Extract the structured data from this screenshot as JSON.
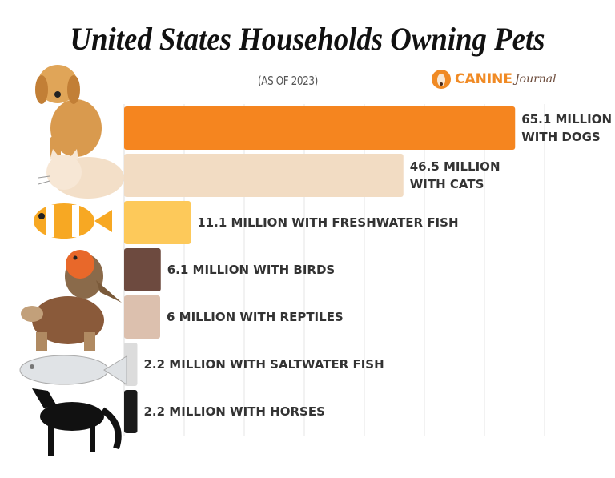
{
  "chart_data": {
    "type": "bar",
    "orientation": "horizontal",
    "title": "United States Households Owning Pets",
    "subtitle": "(AS OF 2023)",
    "categories": [
      "Dogs",
      "Cats",
      "Freshwater Fish",
      "Birds",
      "Reptiles",
      "Saltwater Fish",
      "Horses"
    ],
    "values": [
      65.1,
      46.5,
      11.1,
      6.1,
      6,
      2.2,
      2.2
    ],
    "data_labels": [
      [
        "65.1 MILLION",
        "WITH DOGS"
      ],
      [
        "46.5 MILLION",
        "WITH CATS"
      ],
      [
        "11.1 MILLION WITH FRESHWATER FISH"
      ],
      [
        "6.1 MILLION WITH BIRDS"
      ],
      [
        "6 MILLION WITH REPTILES"
      ],
      [
        "2.2 MILLION WITH SALTWATER FISH"
      ],
      [
        "2.2 MILLION WITH HORSES"
      ]
    ],
    "colors": [
      "#f5851f",
      "#f2dcc3",
      "#fdc95a",
      "#6d4a3f",
      "#dcc0ae",
      "#dcdcdc",
      "#1a1a1a"
    ],
    "unit": "million households",
    "xlim": [
      0,
      70
    ],
    "grid": true,
    "gridline_step": 10,
    "legend": "none"
  },
  "logo": {
    "brand": "CANINE",
    "script": "Journal",
    "mark": "®"
  },
  "icons": [
    "dog-icon",
    "cat-icon",
    "clownfish-icon",
    "robin-icon",
    "tortoise-icon",
    "fish-icon",
    "horse-icon"
  ]
}
